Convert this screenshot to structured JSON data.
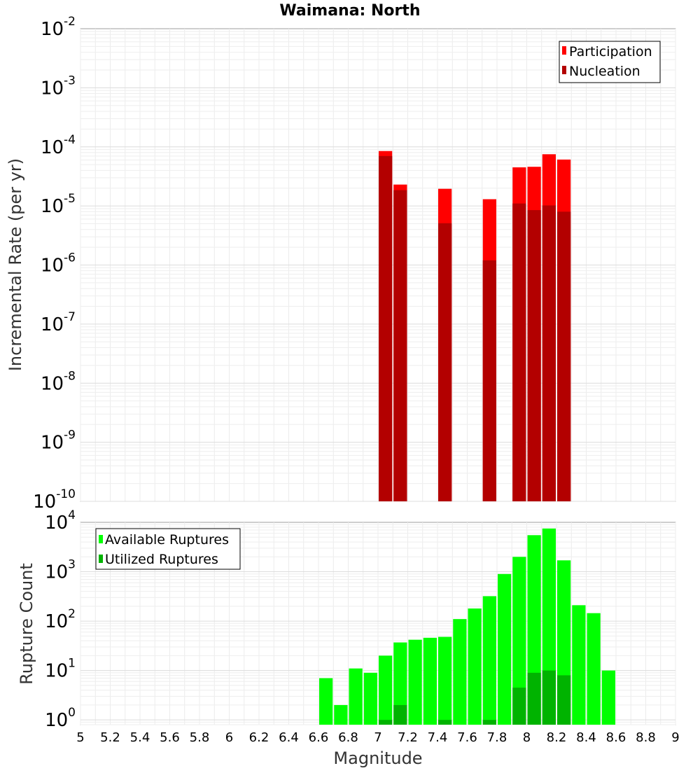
{
  "chart_data": [
    {
      "type": "bar",
      "title": "Waimana: North",
      "ylabel": "Incremental Rate (per yr)",
      "xlabel": "",
      "x_scale": "linear",
      "y_scale": "log",
      "xlim": [
        5,
        9
      ],
      "ylim": [
        1e-10,
        0.01
      ],
      "y_tick_exponents": [
        "-10",
        "-9",
        "-8",
        "-7",
        "-6",
        "-5",
        "-4",
        "-3",
        "-2"
      ],
      "y_tick_base": "10",
      "grid": true,
      "legend_position": "top-right",
      "bar_width": 0.1,
      "series": [
        {
          "name": "Participation",
          "color": "#ff0000",
          "x": [
            7.05,
            7.15,
            7.45,
            7.75,
            7.95,
            8.05,
            8.15,
            8.25
          ],
          "values": [
            8.5e-05,
            2.3e-05,
            1.95e-05,
            1.3e-05,
            4.5e-05,
            4.6e-05,
            7.5e-05,
            6.1e-05
          ]
        },
        {
          "name": "Nucleation",
          "color": "#b30000",
          "x": [
            7.05,
            7.15,
            7.45,
            7.75,
            7.95,
            8.05,
            8.15,
            8.25
          ],
          "values": [
            7e-05,
            1.85e-05,
            5.1e-06,
            1.2e-06,
            1.1e-05,
            8.5e-06,
            1.02e-05,
            8e-06
          ]
        }
      ]
    },
    {
      "type": "bar",
      "title": "",
      "ylabel": "Rupture Count",
      "xlabel": "Magnitude",
      "x_scale": "linear",
      "y_scale": "log",
      "xlim": [
        5,
        9
      ],
      "ylim": [
        0.8,
        10000
      ],
      "x_ticks": [
        "5",
        "5.2",
        "5.4",
        "5.6",
        "5.8",
        "6",
        "6.2",
        "6.4",
        "6.6",
        "6.8",
        "7",
        "7.2",
        "7.4",
        "7.6",
        "7.8",
        "8",
        "8.2",
        "8.4",
        "8.6",
        "8.8",
        "9"
      ],
      "y_tick_exponents": [
        "0",
        "1",
        "2",
        "3",
        "4"
      ],
      "y_tick_base": "10",
      "grid": true,
      "legend_position": "top-left",
      "bar_width": 0.1,
      "series": [
        {
          "name": "Available Ruptures",
          "color": "#00ff00",
          "x": [
            6.65,
            6.75,
            6.85,
            6.95,
            7.05,
            7.15,
            7.25,
            7.35,
            7.45,
            7.55,
            7.65,
            7.75,
            7.85,
            7.95,
            8.05,
            8.15,
            8.25,
            8.35,
            8.45,
            8.55
          ],
          "values": [
            7,
            2,
            11,
            9,
            20,
            37,
            42,
            46,
            48,
            110,
            180,
            320,
            900,
            2000,
            5500,
            7500,
            1700,
            210,
            145,
            10
          ]
        },
        {
          "name": "Utilized Ruptures",
          "color": "#00b300",
          "x": [
            7.05,
            7.15,
            7.45,
            7.75,
            7.95,
            8.05,
            8.15,
            8.25
          ],
          "values": [
            1,
            2,
            1,
            1,
            4.5,
            9,
            10,
            8
          ]
        }
      ]
    }
  ]
}
